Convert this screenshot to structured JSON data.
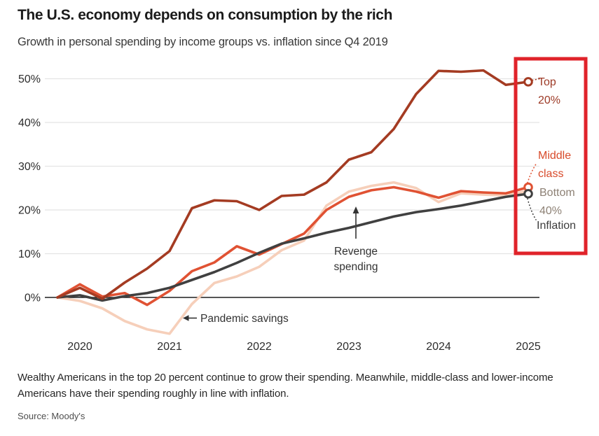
{
  "header": {
    "title": "The U.S. economy depends on consumption by the rich",
    "subtitle": "Growth in personal spending by income groups vs. inflation since Q4 2019"
  },
  "footer": {
    "note": "Wealthy Americans in the top 20 percent continue to grow their spending. Meanwhile, middle-class and lower-income Americans have their spending roughly in line with inflation.",
    "source": "Source: Moody's"
  },
  "highlight_box": {
    "color": "#e0232a",
    "note": "red annotation rectangle over right edge of chart"
  },
  "chart_data": {
    "type": "line",
    "title": "The U.S. economy depends on consumption by the rich",
    "subtitle": "Growth in personal spending by income groups vs. inflation since Q4 2019",
    "x_unit": "quarter",
    "quarters": [
      "2019Q4",
      "2020Q1",
      "2020Q2",
      "2020Q3",
      "2020Q4",
      "2021Q1",
      "2021Q2",
      "2021Q3",
      "2021Q4",
      "2022Q1",
      "2022Q2",
      "2022Q3",
      "2022Q4",
      "2023Q1",
      "2023Q2",
      "2023Q3",
      "2023Q4",
      "2024Q1",
      "2024Q2",
      "2024Q3",
      "2024Q4",
      "2025Q1"
    ],
    "x_tick_labels": [
      "2020",
      "2021",
      "2022",
      "2023",
      "2024",
      "2025"
    ],
    "y_tick_labels": [
      "0%",
      "10%",
      "20%",
      "30%",
      "40%",
      "50%"
    ],
    "y_tick_values": [
      0,
      10,
      20,
      30,
      40,
      50
    ],
    "ylim": [
      -10,
      55
    ],
    "grid": true,
    "series": [
      {
        "id": "bottom40",
        "name": "Bottom 40%",
        "color": "#f6cfba",
        "label_color": "#8d8175",
        "label_lines": [
          "Bottom",
          "40%"
        ],
        "end_marker": false,
        "values": [
          0,
          -0.8,
          -2.5,
          -5.4,
          -7.3,
          -8.3,
          -1.5,
          3.3,
          4.8,
          7.0,
          10.8,
          13.0,
          21.0,
          24.2,
          25.5,
          26.3,
          25.0,
          21.8,
          23.8,
          23.5,
          23.3,
          24.4
        ]
      },
      {
        "id": "middle",
        "name": "Middle class",
        "color": "#e05233",
        "label_color": "#d84a2a",
        "label_lines": [
          "Middle",
          "class"
        ],
        "end_marker": true,
        "values": [
          0,
          3.0,
          0.2,
          1.0,
          -1.7,
          1.5,
          6.0,
          8.0,
          11.7,
          9.8,
          12.2,
          14.6,
          20.0,
          23.0,
          24.5,
          25.2,
          24.2,
          22.8,
          24.3,
          24.0,
          23.8,
          25.2
        ]
      },
      {
        "id": "inflation",
        "name": "Inflation",
        "color": "#404040",
        "label_color": "#3d3d3d",
        "label_lines": [
          "Inflation"
        ],
        "end_marker": true,
        "values": [
          0,
          0.5,
          -0.7,
          0.3,
          1.0,
          2.2,
          4.0,
          5.8,
          7.9,
          10.2,
          12.3,
          13.5,
          14.8,
          15.9,
          17.2,
          18.5,
          19.5,
          20.2,
          21.0,
          22.0,
          23.0,
          23.7
        ]
      },
      {
        "id": "top20",
        "name": "Top 20%",
        "color": "#a43b22",
        "label_color": "#9d3a26",
        "label_lines": [
          "Top",
          "20%"
        ],
        "end_marker": true,
        "values": [
          0,
          2.2,
          -0.3,
          3.4,
          6.6,
          10.6,
          20.4,
          22.2,
          22.0,
          20.0,
          23.2,
          23.5,
          26.3,
          31.5,
          33.2,
          38.5,
          46.5,
          51.8,
          51.6,
          51.9,
          48.6,
          49.3
        ]
      }
    ],
    "annotations": [
      {
        "id": "revenge",
        "lines": [
          "Revenge",
          "spending"
        ],
        "arrow": "up"
      },
      {
        "id": "pandemic",
        "text": "Pandemic savings",
        "arrow": "left"
      }
    ],
    "legend_position": "right-of-line-ends"
  }
}
